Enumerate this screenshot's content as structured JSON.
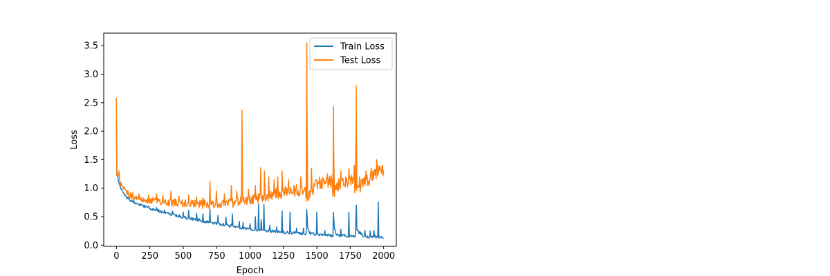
{
  "chart_data": {
    "type": "line",
    "title": "",
    "xlabel": "Epoch",
    "ylabel": "Loss",
    "xlim": [
      -95,
      2095
    ],
    "ylim": [
      -0.02,
      3.72
    ],
    "xticks": [
      0,
      250,
      500,
      750,
      1000,
      1250,
      1500,
      1750,
      2000
    ],
    "yticks": [
      0.0,
      0.5,
      1.0,
      1.5,
      2.0,
      2.5,
      3.0,
      3.5
    ],
    "xtick_labels": [
      "0",
      "250",
      "500",
      "750",
      "1000",
      "1250",
      "1500",
      "1750",
      "2000"
    ],
    "ytick_labels": [
      "0.0",
      "0.5",
      "1.0",
      "1.5",
      "2.0",
      "2.5",
      "3.0",
      "3.5"
    ],
    "grid": false,
    "legend_position": "upper right",
    "series": [
      {
        "name": "Train Loss",
        "color": "#1f77b4",
        "x": [
          0,
          1,
          2,
          5,
          10,
          20,
          30,
          50,
          75,
          100,
          150,
          200,
          250,
          300,
          350,
          400,
          450,
          500,
          550,
          600,
          650,
          700,
          750,
          800,
          850,
          900,
          950,
          1000,
          1050,
          1100,
          1150,
          1200,
          1250,
          1300,
          1350,
          1400,
          1420,
          1425,
          1430,
          1450,
          1500,
          1550,
          1600,
          1620,
          1625,
          1630,
          1650,
          1700,
          1750,
          1790,
          1795,
          1800,
          1850,
          1900,
          1950,
          2000
        ],
        "y": [
          2.2,
          1.5,
          1.4,
          1.28,
          1.18,
          1.07,
          1.0,
          0.93,
          0.85,
          0.79,
          0.74,
          0.69,
          0.65,
          0.61,
          0.58,
          0.55,
          0.52,
          0.49,
          0.47,
          0.45,
          0.42,
          0.4,
          0.38,
          0.36,
          0.34,
          0.32,
          0.3,
          0.28,
          0.27,
          0.26,
          0.25,
          0.24,
          0.23,
          0.22,
          0.21,
          0.2,
          0.2,
          0.72,
          0.3,
          0.2,
          0.19,
          0.18,
          0.17,
          0.17,
          0.7,
          0.28,
          0.18,
          0.17,
          0.16,
          0.16,
          0.82,
          0.26,
          0.16,
          0.15,
          0.15,
          0.14
        ],
        "spikes": [
          [
            300,
            0.66
          ],
          [
            360,
            0.62
          ],
          [
            420,
            0.6
          ],
          [
            500,
            0.58
          ],
          [
            540,
            0.61
          ],
          [
            600,
            0.56
          ],
          [
            650,
            0.55
          ],
          [
            700,
            0.63
          ],
          [
            760,
            0.52
          ],
          [
            820,
            0.49
          ],
          [
            870,
            0.55
          ],
          [
            920,
            0.42
          ],
          [
            950,
            0.4
          ],
          [
            1000,
            0.38
          ],
          [
            1040,
            0.5
          ],
          [
            1065,
            0.72
          ],
          [
            1085,
            0.45
          ],
          [
            1105,
            0.72
          ],
          [
            1150,
            0.35
          ],
          [
            1200,
            0.32
          ],
          [
            1240,
            0.6
          ],
          [
            1300,
            0.58
          ],
          [
            1350,
            0.3
          ],
          [
            1400,
            0.3
          ],
          [
            1500,
            0.58
          ],
          [
            1560,
            0.26
          ],
          [
            1680,
            0.28
          ],
          [
            1740,
            0.58
          ],
          [
            1860,
            0.26
          ],
          [
            1900,
            0.25
          ],
          [
            1930,
            0.26
          ],
          [
            1960,
            0.76
          ]
        ]
      },
      {
        "name": "Test Loss",
        "color": "#ff7f0e",
        "x": [
          0,
          1,
          2,
          5,
          10,
          20,
          30,
          50,
          75,
          100,
          150,
          200,
          250,
          300,
          350,
          400,
          450,
          500,
          550,
          600,
          650,
          700,
          750,
          800,
          850,
          900,
          950,
          1000,
          1050,
          1100,
          1150,
          1200,
          1250,
          1300,
          1350,
          1400,
          1410,
          1420,
          1425,
          1430,
          1450,
          1500,
          1550,
          1600,
          1615,
          1620,
          1625,
          1630,
          1650,
          1700,
          1750,
          1790,
          1795,
          1800,
          1850,
          1900,
          1950,
          1975,
          2000
        ],
        "y": [
          2.58,
          1.35,
          1.3,
          1.25,
          1.2,
          1.15,
          1.1,
          1.0,
          0.92,
          0.87,
          0.83,
          0.8,
          0.78,
          0.77,
          0.76,
          0.75,
          0.74,
          0.73,
          0.73,
          0.72,
          0.72,
          0.72,
          0.72,
          0.73,
          0.74,
          0.76,
          0.78,
          0.8,
          0.82,
          0.85,
          0.88,
          0.9,
          0.92,
          0.94,
          0.96,
          0.98,
          1.0,
          0.85,
          3.55,
          0.8,
          0.95,
          1.05,
          1.1,
          1.12,
          1.15,
          0.82,
          2.43,
          0.9,
          1.05,
          1.12,
          1.15,
          1.0,
          2.8,
          0.95,
          1.1,
          1.18,
          1.25,
          1.3,
          1.28
        ],
        "spikes": [
          [
            20,
            1.3
          ],
          [
            120,
            0.92
          ],
          [
            170,
            0.9
          ],
          [
            240,
            0.88
          ],
          [
            300,
            0.9
          ],
          [
            350,
            0.87
          ],
          [
            410,
            0.95
          ],
          [
            470,
            0.86
          ],
          [
            540,
            0.88
          ],
          [
            600,
            0.85
          ],
          [
            650,
            0.83
          ],
          [
            700,
            1.12
          ],
          [
            750,
            0.95
          ],
          [
            810,
            0.9
          ],
          [
            860,
            1.05
          ],
          [
            900,
            0.95
          ],
          [
            940,
            2.37
          ],
          [
            990,
            0.98
          ],
          [
            1040,
            1.05
          ],
          [
            1080,
            1.36
          ],
          [
            1110,
            1.3
          ],
          [
            1140,
            1.2
          ],
          [
            1180,
            1.15
          ],
          [
            1210,
            1.2
          ],
          [
            1240,
            1.3
          ],
          [
            1290,
            1.15
          ],
          [
            1330,
            1.05
          ],
          [
            1380,
            1.2
          ],
          [
            1460,
            1.35
          ],
          [
            1520,
            1.2
          ],
          [
            1580,
            1.25
          ],
          [
            1680,
            1.3
          ],
          [
            1740,
            1.35
          ],
          [
            1780,
            1.4
          ],
          [
            1820,
            1.2
          ],
          [
            1870,
            1.3
          ],
          [
            1910,
            1.35
          ],
          [
            1950,
            1.5
          ],
          [
            1990,
            1.38
          ]
        ]
      }
    ]
  }
}
